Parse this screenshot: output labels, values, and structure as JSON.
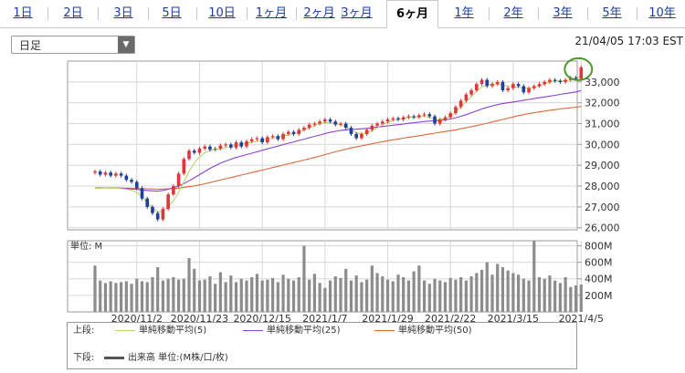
{
  "tabs": [
    {
      "label": "1日",
      "active": false
    },
    {
      "label": "2日",
      "active": false
    },
    {
      "label": "3日",
      "active": false
    },
    {
      "label": "5日",
      "active": false
    },
    {
      "label": "10日",
      "active": false
    },
    {
      "label": "1ヶ月",
      "active": false
    },
    {
      "label": "2ヶ月",
      "active": false
    },
    {
      "label": "3ヶ月",
      "active": false
    },
    {
      "label": "6ヶ月",
      "active": true
    },
    {
      "label": "1年",
      "active": false
    },
    {
      "label": "2年",
      "active": false
    },
    {
      "label": "3年",
      "active": false
    },
    {
      "label": "5年",
      "active": false
    },
    {
      "label": "10年",
      "active": false
    }
  ],
  "period_select": {
    "value": "日足"
  },
  "timestamp": "21/04/05 17:03 EST",
  "legend": {
    "upper_label": "上段:",
    "lower_label": "下段:",
    "items": [
      {
        "label": "単純移動平均(5)",
        "color": "#b5d66f"
      },
      {
        "label": "単純移動平均(25)",
        "color": "#8e3fd6"
      },
      {
        "label": "単純移動平均(50)",
        "color": "#d9693a"
      }
    ],
    "volume_label": "出来高 単位:(M株/口/枚)",
    "volume_color": "#555555"
  },
  "colors": {
    "up_candle": "#e0363a",
    "down_candle": "#1f3f9a",
    "volume_bar": "#8c8c8c",
    "highlight_circle": "#4a9a2a"
  },
  "chart_data": [
    {
      "type": "candlestick",
      "y_ticks": [
        "33,000",
        "32,000",
        "31,000",
        "30,000",
        "29,000",
        "28,000",
        "27,000",
        "26,000"
      ],
      "y_tick_values": [
        33000,
        32000,
        31000,
        30000,
        29000,
        28000,
        27000,
        26000
      ],
      "ylim": [
        25900,
        34000
      ],
      "x_tick_labels": [
        "2020/11/2",
        "2020/11/23",
        "2020/12/15",
        "2021/1/7",
        "2021/1/29",
        "2021/2/22",
        "2021/3/15",
        "2021/4/5"
      ],
      "x_tick_index": [
        8,
        20,
        32,
        44,
        56,
        68,
        80,
        93
      ],
      "close": [
        28700,
        28550,
        28650,
        28500,
        28600,
        28500,
        28300,
        28200,
        27900,
        27400,
        27000,
        26700,
        26400,
        26900,
        27600,
        28000,
        28600,
        29300,
        29700,
        29600,
        29800,
        29900,
        29750,
        29800,
        29950,
        30000,
        29850,
        30100,
        29900,
        30150,
        30250,
        30300,
        30100,
        30350,
        30400,
        30250,
        30500,
        30600,
        30500,
        30700,
        30800,
        30950,
        31000,
        31100,
        31200,
        31100,
        30950,
        31000,
        30800,
        30500,
        30300,
        30500,
        30700,
        30900,
        31000,
        31100,
        31200,
        31250,
        31200,
        31300,
        31350,
        31300,
        31400,
        31450,
        31350,
        31000,
        31200,
        31300,
        31500,
        31800,
        32100,
        32400,
        32600,
        32900,
        33100,
        32800,
        32900,
        33000,
        32600,
        32700,
        32900,
        32800,
        32500,
        32700,
        32800,
        32900,
        33000,
        33100,
        33050,
        33000,
        33100,
        33200,
        33150,
        33700
      ],
      "ma5": [
        27900,
        27900,
        27920,
        27900,
        27900,
        27880,
        27850,
        27800,
        27700,
        27500,
        27200,
        26950,
        26750,
        26800,
        27000,
        27300,
        27700,
        28200,
        28700,
        29100,
        29400,
        29600,
        29700,
        29750,
        29800,
        29850,
        29900,
        29950,
        30000,
        30050,
        30100,
        30150,
        30200,
        30250,
        30300,
        30350,
        30400,
        30450,
        30500,
        30600,
        30700,
        30800,
        30900,
        31000,
        31050,
        31050,
        31000,
        30950,
        30850,
        30700,
        30550,
        30500,
        30550,
        30650,
        30800,
        30950,
        31050,
        31150,
        31200,
        31250,
        31300,
        31300,
        31350,
        31350,
        31300,
        31200,
        31200,
        31250,
        31350,
        31550,
        31800,
        32050,
        32300,
        32550,
        32750,
        32850,
        32900,
        32900,
        32850,
        32800,
        32750,
        32750,
        32700,
        32700,
        32750,
        32800,
        32900,
        33000,
        33050,
        33050,
        33050,
        33100,
        33150,
        33300
      ],
      "ma25": [
        27920,
        27920,
        27920,
        27920,
        27910,
        27900,
        27880,
        27860,
        27840,
        27810,
        27790,
        27770,
        27760,
        27790,
        27850,
        27920,
        28000,
        28120,
        28250,
        28400,
        28550,
        28700,
        28850,
        28980,
        29100,
        29200,
        29290,
        29370,
        29440,
        29510,
        29580,
        29650,
        29720,
        29790,
        29860,
        29920,
        29990,
        30060,
        30120,
        30190,
        30250,
        30320,
        30390,
        30450,
        30520,
        30580,
        30630,
        30670,
        30700,
        30720,
        30730,
        30750,
        30770,
        30800,
        30830,
        30860,
        30890,
        30920,
        30950,
        30980,
        31010,
        31040,
        31070,
        31100,
        31120,
        31130,
        31150,
        31180,
        31220,
        31280,
        31350,
        31430,
        31520,
        31610,
        31700,
        31780,
        31850,
        31910,
        31960,
        32000,
        32040,
        32080,
        32120,
        32160,
        32200,
        32240,
        32280,
        32320,
        32360,
        32400,
        32440,
        32480,
        32520,
        32580
      ],
      "ma50": [
        27900,
        27905,
        27910,
        27910,
        27910,
        27905,
        27900,
        27895,
        27890,
        27880,
        27870,
        27860,
        27850,
        27855,
        27865,
        27880,
        27900,
        27930,
        27970,
        28010,
        28060,
        28110,
        28170,
        28230,
        28290,
        28350,
        28410,
        28470,
        28530,
        28590,
        28650,
        28710,
        28770,
        28830,
        28890,
        28950,
        29010,
        29070,
        29130,
        29190,
        29250,
        29310,
        29370,
        29440,
        29510,
        29580,
        29650,
        29710,
        29770,
        29830,
        29880,
        29930,
        29980,
        30030,
        30080,
        30130,
        30180,
        30220,
        30260,
        30300,
        30340,
        30380,
        30420,
        30460,
        30500,
        30540,
        30580,
        30620,
        30660,
        30700,
        30750,
        30800,
        30850,
        30900,
        30960,
        31020,
        31080,
        31140,
        31200,
        31260,
        31320,
        31380,
        31430,
        31480,
        31520,
        31560,
        31600,
        31640,
        31670,
        31700,
        31730,
        31760,
        31790,
        31830
      ]
    },
    {
      "type": "bar",
      "title": "単位: M",
      "y_ticks": [
        "800M",
        "600M",
        "400M",
        "200M"
      ],
      "y_tick_values": [
        800,
        600,
        400,
        200
      ],
      "ylim": [
        0,
        860
      ],
      "values": [
        560,
        380,
        350,
        370,
        350,
        360,
        370,
        340,
        400,
        370,
        360,
        420,
        540,
        380,
        400,
        420,
        390,
        400,
        650,
        520,
        380,
        390,
        430,
        340,
        480,
        360,
        440,
        360,
        400,
        380,
        420,
        460,
        380,
        390,
        410,
        360,
        450,
        400,
        380,
        420,
        800,
        390,
        460,
        350,
        290,
        380,
        430,
        410,
        520,
        380,
        440,
        360,
        390,
        560,
        470,
        430,
        390,
        370,
        450,
        420,
        380,
        490,
        560,
        380,
        340,
        400,
        380,
        360,
        410,
        390,
        420,
        380,
        430,
        470,
        510,
        600,
        450,
        580,
        540,
        500,
        470,
        450,
        400,
        380,
        860,
        420,
        400,
        440,
        380,
        350,
        420,
        300,
        320,
        330
      ]
    }
  ]
}
